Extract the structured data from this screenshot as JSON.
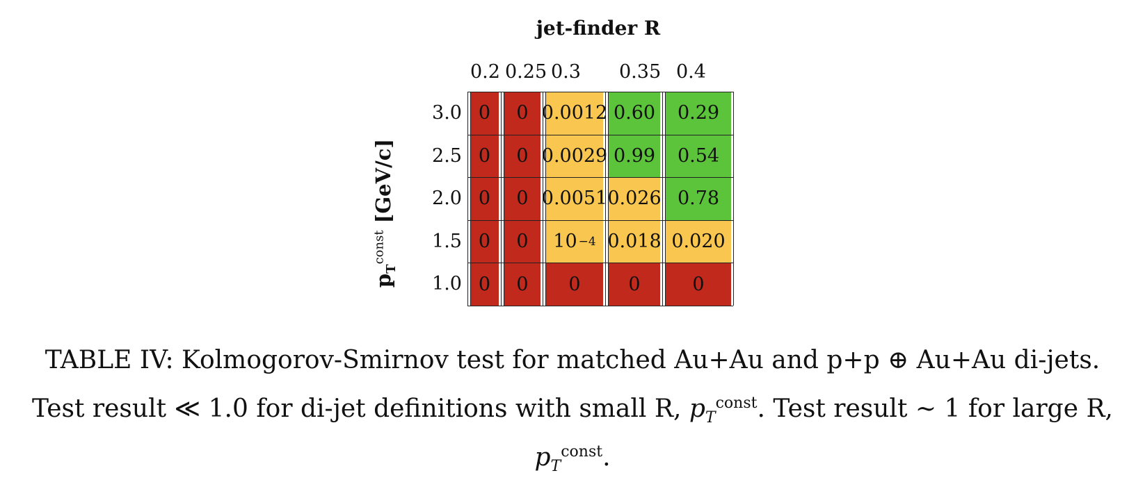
{
  "table": {
    "column_title": "jet-finder R",
    "columns": [
      "0.2",
      "0.25",
      "0.3",
      "0.35",
      "0.4"
    ],
    "row_title": "p",
    "row_title_sup": "const",
    "row_title_sub": "T",
    "row_title_unit": "[GeV/c]",
    "rows": [
      {
        "label": "3.0",
        "cells": [
          {
            "text": "0",
            "status": "fail"
          },
          {
            "text": "0",
            "status": "fail"
          },
          {
            "text": "0.0012",
            "status": "marginal"
          },
          {
            "text": "0.60",
            "status": "pass"
          },
          {
            "text": "0.29",
            "status": "pass"
          }
        ]
      },
      {
        "label": "2.5",
        "cells": [
          {
            "text": "0",
            "status": "fail"
          },
          {
            "text": "0",
            "status": "fail"
          },
          {
            "text": "0.0029",
            "status": "marginal"
          },
          {
            "text": "0.99",
            "status": "pass"
          },
          {
            "text": "0.54",
            "status": "pass"
          }
        ]
      },
      {
        "label": "2.0",
        "cells": [
          {
            "text": "0",
            "status": "fail"
          },
          {
            "text": "0",
            "status": "fail"
          },
          {
            "text": "0.0051",
            "status": "marginal"
          },
          {
            "text": "0.026",
            "status": "marginal"
          },
          {
            "text": "0.78",
            "status": "pass"
          }
        ]
      },
      {
        "label": "1.5",
        "cells": [
          {
            "text": "0",
            "status": "fail"
          },
          {
            "text": "0",
            "status": "fail"
          },
          {
            "text": "10",
            "sup": "−4",
            "status": "marginal"
          },
          {
            "text": "0.018",
            "status": "marginal"
          },
          {
            "text": "0.020",
            "status": "marginal"
          }
        ]
      },
      {
        "label": "1.0",
        "cells": [
          {
            "text": "0",
            "status": "fail"
          },
          {
            "text": "0",
            "status": "fail"
          },
          {
            "text": "0",
            "status": "fail"
          },
          {
            "text": "0",
            "status": "fail"
          },
          {
            "text": "0",
            "status": "fail"
          }
        ]
      }
    ],
    "colors": {
      "fail": "#c0291b",
      "marginal": "#f9c74f",
      "pass": "#5cc43b"
    }
  },
  "caption": {
    "line1": "TABLE IV:  Kolmogorov-Smirnov test for matched Au+Au and p+p ⊕ Au+Au di-jets.",
    "line2a": "Test result ≪ 1.0 for di-jet definitions with small R, ",
    "line2b": ". Test result ∼ 1 for large R,",
    "pt_symbol": "p",
    "pt_sub": "T",
    "pt_sup": "const"
  }
}
